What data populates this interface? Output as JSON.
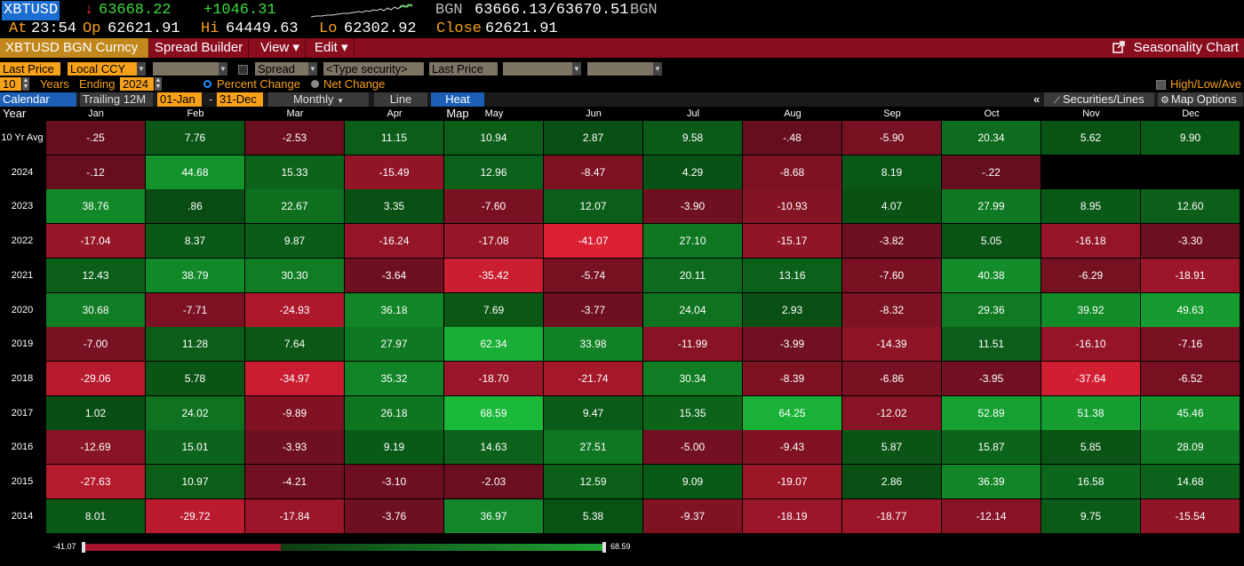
{
  "quote": {
    "ticker": "XBTUSD",
    "arrow": "↓",
    "last": "63668.22",
    "change": "+1046.31",
    "source": "BGN",
    "bid_ask": "63666.13/63670.51",
    "source2": "BGN",
    "at_label": "At",
    "time": "23:54",
    "op_label": "Op",
    "open": "62621.91",
    "hi_label": "Hi",
    "high": "64449.63",
    "lo_label": "Lo",
    "low": "62302.92",
    "close_label": "Close",
    "close": "62621.91"
  },
  "menubar": {
    "security": "XBTUSD BGN Curncy",
    "spread_builder": "Spread Builder",
    "view": "View ▾",
    "edit": "Edit ▾",
    "title": "Seasonality Chart"
  },
  "controls": {
    "last_price": "Last Price",
    "currency": "Local CCY",
    "spread": "Spread",
    "type_security": "<Type security>",
    "last_price2": "Last Price",
    "years_count": "10",
    "years_label": "Years",
    "ending_label": "Ending",
    "ending_year": "2024",
    "percent_change": "Percent Change",
    "net_change": "Net Change",
    "high_low": "High/Low/Ave"
  },
  "tabs": {
    "calendar_year": "Calendar Year",
    "trailing": "Trailing 12M",
    "start": "01-Jan",
    "dash": "-",
    "end": "31-Dec",
    "period": "Monthly",
    "line": "Line",
    "heat_map": "Heat Map",
    "collapse": "«",
    "securities_lines": "Securities/Lines",
    "map_options": "Map Options"
  },
  "colors": {
    "accent_orange": "#f7a11a",
    "menu_red": "#8a0d1d",
    "up_green": "#3cdb3c",
    "down_red": "#ff3030"
  },
  "table": {
    "months": [
      "Jan",
      "Feb",
      "Mar",
      "Apr",
      "May",
      "Jun",
      "Jul",
      "Aug",
      "Sep",
      "Oct",
      "Nov",
      "Dec"
    ],
    "rows": [
      {
        "label": "10 Yr Avg",
        "values": [
          "-.25",
          "7.76",
          "-2.53",
          "11.15",
          "10.94",
          "2.87",
          "9.58",
          "-.48",
          "-5.90",
          "20.34",
          "5.62",
          "9.90"
        ]
      },
      {
        "label": "2024",
        "values": [
          "-.12",
          "44.68",
          "15.33",
          "-15.49",
          "12.96",
          "-8.47",
          "4.29",
          "-8.68",
          "8.19",
          "-.22",
          "",
          ""
        ]
      },
      {
        "label": "2023",
        "values": [
          "38.76",
          ".86",
          "22.67",
          "3.35",
          "-7.60",
          "12.07",
          "-3.90",
          "-10.93",
          "4.07",
          "27.99",
          "8.95",
          "12.60"
        ]
      },
      {
        "label": "2022",
        "values": [
          "-17.04",
          "8.37",
          "9.87",
          "-16.24",
          "-17.08",
          "-41.07",
          "27.10",
          "-15.17",
          "-3.82",
          "5.05",
          "-16.18",
          "-3.30"
        ]
      },
      {
        "label": "2021",
        "values": [
          "12.43",
          "38.79",
          "30.30",
          "-3.64",
          "-35.42",
          "-5.74",
          "20.11",
          "13.16",
          "-7.60",
          "40.38",
          "-6.29",
          "-18.91"
        ]
      },
      {
        "label": "2020",
        "values": [
          "30.68",
          "-7.71",
          "-24.93",
          "36.18",
          "7.69",
          "-3.77",
          "24.04",
          "2.93",
          "-8.32",
          "29.36",
          "39.92",
          "49.63"
        ]
      },
      {
        "label": "2019",
        "values": [
          "-7.00",
          "11.28",
          "7.64",
          "27.97",
          "62.34",
          "33.98",
          "-11.99",
          "-3.99",
          "-14.39",
          "11.51",
          "-16.10",
          "-7.16"
        ]
      },
      {
        "label": "2018",
        "values": [
          "-29.06",
          "5.78",
          "-34.97",
          "35.32",
          "-18.70",
          "-21.74",
          "30.34",
          "-8.39",
          "-6.86",
          "-3.95",
          "-37.64",
          "-6.52"
        ]
      },
      {
        "label": "2017",
        "values": [
          "1.02",
          "24.02",
          "-9.89",
          "26.18",
          "68.59",
          "9.47",
          "15.35",
          "64.25",
          "-12.02",
          "52.89",
          "51.38",
          "45.46"
        ]
      },
      {
        "label": "2016",
        "values": [
          "-12.69",
          "15.01",
          "-3.93",
          "9.19",
          "14.63",
          "27.51",
          "-5.00",
          "-9.43",
          "5.87",
          "15.87",
          "5.85",
          "28.09"
        ]
      },
      {
        "label": "2015",
        "values": [
          "-27.63",
          "10.97",
          "-4.21",
          "-3.10",
          "-2.03",
          "12.59",
          "9.09",
          "-19.07",
          "2.86",
          "36.39",
          "16.58",
          "14.68"
        ]
      },
      {
        "label": "2014",
        "values": [
          "8.01",
          "-29.72",
          "-17.84",
          "-3.76",
          "36.97",
          "5.38",
          "-9.37",
          "-18.19",
          "-18.77",
          "-12.14",
          "9.75",
          "-15.54"
        ]
      }
    ]
  },
  "scale": {
    "min_label": "-41.07",
    "max_label": "68.59",
    "min": -41.07,
    "max": 68.59
  }
}
